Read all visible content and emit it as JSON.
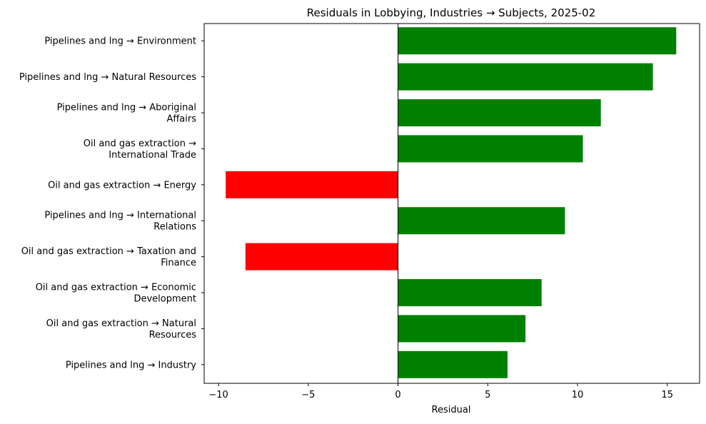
{
  "chart_data": {
    "type": "bar",
    "orientation": "horizontal",
    "title": "Residuals in Lobbying, Industries → Subjects, 2025-02",
    "xlabel": "Residual",
    "ylabel": "",
    "xlim": [
      -10.8,
      16.8
    ],
    "xticks": [
      -10,
      -5,
      0,
      5,
      10,
      15
    ],
    "xtick_labels": [
      "−10",
      "−5",
      "0",
      "5",
      "10",
      "15"
    ],
    "grid": false,
    "zero_line": true,
    "positive_color": "#008000",
    "negative_color": "#ff0000",
    "categories": [
      [
        "Pipelines and lng → Environment"
      ],
      [
        "Pipelines and lng → Natural Resources"
      ],
      [
        "Pipelines and lng → Aboriginal",
        "Affairs"
      ],
      [
        "Oil and gas extraction →",
        "International Trade"
      ],
      [
        "Oil and gas extraction → Energy"
      ],
      [
        "Pipelines and lng → International",
        "Relations"
      ],
      [
        "Oil and gas extraction → Taxation and",
        "Finance"
      ],
      [
        "Oil and gas extraction → Economic",
        "Development"
      ],
      [
        "Oil and gas extraction → Natural",
        "Resources"
      ],
      [
        "Pipelines and lng → Industry"
      ]
    ],
    "values": [
      15.5,
      14.2,
      11.3,
      10.3,
      -9.6,
      9.3,
      -8.5,
      8.0,
      7.1,
      6.1
    ]
  }
}
